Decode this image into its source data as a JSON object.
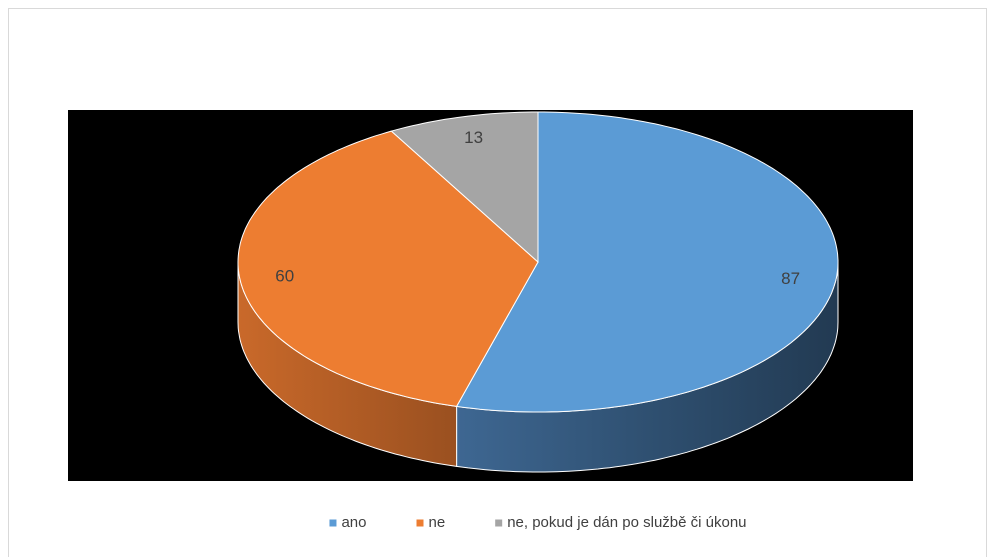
{
  "chart_data": {
    "type": "pie",
    "three_d": true,
    "categories": [
      "ano",
      "ne",
      "ne, pokud je dán po službě či úkonu"
    ],
    "values": [
      87,
      60,
      13
    ],
    "colors": [
      "#5b9bd5",
      "#ed7d31",
      "#a5a5a5"
    ],
    "legend": "bottom"
  }
}
